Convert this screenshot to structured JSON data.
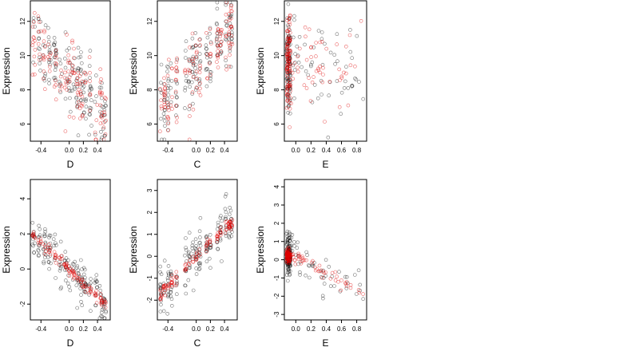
{
  "chart_data": [
    {
      "type": "scatter",
      "xlabel": "D",
      "ylabel": "Expression",
      "xlim": [
        -0.55,
        0.58
      ],
      "ylim": [
        5.0,
        13.2
      ],
      "xticks": [
        "-0.4",
        "0.0",
        "0.2",
        "0.4"
      ],
      "xtick_values": [
        -0.4,
        0.0,
        0.2,
        0.4
      ],
      "yticks": [
        "6",
        "8",
        "10",
        "12"
      ],
      "ytick_values": [
        6,
        8,
        10,
        12
      ],
      "series": [
        {
          "color": "#000000",
          "trend": [
            [
              -0.5,
              10.8
            ],
            [
              0.5,
              6.7
            ]
          ],
          "spread": 1.1,
          "n": 170,
          "x_levels": [
            -0.5,
            -0.42,
            -0.35,
            -0.28,
            -0.2,
            -0.12,
            -0.05,
            0.0,
            0.06,
            0.12,
            0.17,
            0.22,
            0.3,
            0.38,
            0.45,
            0.5
          ],
          "xjitter": 0.02
        },
        {
          "color": "#e00000",
          "trend": [
            [
              -0.5,
              10.8
            ],
            [
              0.5,
              6.7
            ]
          ],
          "spread": 1.0,
          "n": 140,
          "x_levels": [
            -0.5,
            -0.42,
            -0.35,
            -0.28,
            -0.2,
            -0.12,
            -0.05,
            0.0,
            0.06,
            0.12,
            0.17,
            0.22,
            0.3,
            0.38,
            0.45,
            0.5
          ],
          "xjitter": 0.02
        }
      ]
    },
    {
      "type": "scatter",
      "xlabel": "C",
      "ylabel": "Expression",
      "xlim": [
        -0.55,
        0.58
      ],
      "ylim": [
        5.0,
        13.2
      ],
      "xticks": [
        "-0.4",
        "0.0",
        "0.2",
        "0.4"
      ],
      "xtick_values": [
        -0.4,
        0.0,
        0.2,
        0.4
      ],
      "yticks": [
        "6",
        "8",
        "10",
        "12"
      ],
      "ytick_values": [
        6,
        8,
        10,
        12
      ],
      "series": [
        {
          "color": "#000000",
          "trend": [
            [
              -0.5,
              7.3
            ],
            [
              0.5,
              11.2
            ]
          ],
          "spread": 1.1,
          "n": 170,
          "x_levels": [
            -0.5,
            -0.45,
            -0.4,
            -0.35,
            -0.28,
            -0.15,
            -0.1,
            -0.05,
            0.0,
            0.05,
            0.15,
            0.2,
            0.3,
            0.35,
            0.42,
            0.47,
            0.5
          ],
          "xjitter": 0.012
        },
        {
          "color": "#e00000",
          "trend": [
            [
              -0.5,
              7.3
            ],
            [
              0.5,
              11.2
            ]
          ],
          "spread": 1.0,
          "n": 140,
          "x_levels": [
            -0.5,
            -0.45,
            -0.4,
            -0.35,
            -0.28,
            -0.15,
            -0.1,
            -0.05,
            0.0,
            0.05,
            0.15,
            0.2,
            0.3,
            0.35,
            0.42,
            0.47,
            0.5
          ],
          "xjitter": 0.012
        }
      ]
    },
    {
      "type": "scatter",
      "xlabel": "E",
      "ylabel": "Expression",
      "xlim": [
        -0.15,
        0.93
      ],
      "ylim": [
        5.0,
        13.2
      ],
      "xticks": [
        "0.0",
        "0.2",
        "0.4",
        "0.6",
        "0.8"
      ],
      "xtick_values": [
        0.0,
        0.2,
        0.4,
        0.6,
        0.8
      ],
      "yticks": [
        "6",
        "8",
        "10",
        "12"
      ],
      "ytick_values": [
        6,
        8,
        10,
        12
      ],
      "series": [
        {
          "color": "#000000",
          "trend": [
            [
              -0.12,
              9.5
            ],
            [
              0.9,
              9.5
            ]
          ],
          "spread": 1.5,
          "n": 160,
          "x_skew": true
        },
        {
          "color": "#e00000",
          "trend": [
            [
              -0.12,
              9.5
            ],
            [
              0.9,
              9.0
            ]
          ],
          "spread": 1.4,
          "n": 150,
          "x_skew": true
        }
      ]
    },
    {
      "type": "scatter",
      "xlabel": "D",
      "ylabel": "Expression",
      "xlim": [
        -0.55,
        0.58
      ],
      "ylim": [
        -2.9,
        5.1
      ],
      "xticks": [
        "-0.4",
        "0.0",
        "0.2",
        "0.4"
      ],
      "xtick_values": [
        -0.4,
        0.0,
        0.2,
        0.4
      ],
      "yticks": [
        "-2",
        "0",
        "2",
        "4"
      ],
      "ytick_values": [
        -2,
        0,
        2,
        4
      ],
      "series": [
        {
          "color": "#000000",
          "trend": [
            [
              -0.5,
              1.9
            ],
            [
              0.5,
              -2.0
            ]
          ],
          "spread": 0.55,
          "n": 180,
          "x_levels": [
            -0.5,
            -0.42,
            -0.35,
            -0.28,
            -0.2,
            -0.12,
            -0.05,
            0.0,
            0.06,
            0.12,
            0.17,
            0.22,
            0.3,
            0.38,
            0.45,
            0.5
          ],
          "xjitter": 0.02
        },
        {
          "color": "#e00000",
          "trend": [
            [
              -0.5,
              1.9
            ],
            [
              0.5,
              -2.0
            ]
          ],
          "spread": 0.15,
          "n": 120,
          "x_levels": [
            -0.5,
            -0.42,
            -0.35,
            -0.28,
            -0.2,
            -0.12,
            -0.05,
            0.0,
            0.06,
            0.12,
            0.17,
            0.22,
            0.3,
            0.38,
            0.45,
            0.5
          ],
          "xjitter": 0.02
        }
      ]
    },
    {
      "type": "scatter",
      "xlabel": "C",
      "ylabel": "Expression",
      "xlim": [
        -0.55,
        0.58
      ],
      "ylim": [
        -2.9,
        3.5
      ],
      "xticks": [
        "-0.4",
        "0.0",
        "0.2",
        "0.4"
      ],
      "xtick_values": [
        -0.4,
        0.0,
        0.2,
        0.4
      ],
      "yticks": [
        "-2",
        "-1",
        "0",
        "1",
        "2",
        "3"
      ],
      "ytick_values": [
        -2,
        -1,
        0,
        1,
        2,
        3
      ],
      "series": [
        {
          "color": "#000000",
          "trend": [
            [
              -0.5,
              -1.7
            ],
            [
              0.5,
              1.6
            ]
          ],
          "spread": 0.55,
          "n": 180,
          "x_levels": [
            -0.5,
            -0.45,
            -0.4,
            -0.35,
            -0.28,
            -0.15,
            -0.1,
            -0.05,
            0.0,
            0.05,
            0.15,
            0.2,
            0.3,
            0.35,
            0.42,
            0.47,
            0.5
          ],
          "xjitter": 0.012
        },
        {
          "color": "#e00000",
          "trend": [
            [
              -0.5,
              -1.7
            ],
            [
              0.5,
              1.6
            ]
          ],
          "spread": 0.15,
          "n": 120,
          "x_levels": [
            -0.5,
            -0.45,
            -0.4,
            -0.35,
            -0.28,
            -0.15,
            -0.1,
            -0.05,
            0.0,
            0.05,
            0.15,
            0.2,
            0.3,
            0.35,
            0.42,
            0.47,
            0.5
          ],
          "xjitter": 0.012
        }
      ]
    },
    {
      "type": "scatter",
      "xlabel": "E",
      "ylabel": "Expression",
      "xlim": [
        -0.15,
        0.93
      ],
      "ylim": [
        -3.3,
        4.4
      ],
      "xticks": [
        "0.0",
        "0.2",
        "0.4",
        "0.6",
        "0.8"
      ],
      "xtick_values": [
        0.0,
        0.2,
        0.4,
        0.6,
        0.8
      ],
      "yticks": [
        "-3",
        "-2",
        "-1",
        "0",
        "1",
        "2",
        "3",
        "4"
      ],
      "ytick_values": [
        -3,
        -2,
        -1,
        0,
        1,
        2,
        3,
        4
      ],
      "series": [
        {
          "color": "#000000",
          "trend": [
            [
              -0.12,
              0.3
            ],
            [
              0.9,
              -1.8
            ]
          ],
          "spread": 0.6,
          "n": 170,
          "x_skew": true
        },
        {
          "color": "#e00000",
          "trend": [
            [
              -0.12,
              0.3
            ],
            [
              0.9,
              -1.8
            ]
          ],
          "spread": 0.2,
          "n": 140,
          "x_skew": true
        }
      ]
    }
  ]
}
